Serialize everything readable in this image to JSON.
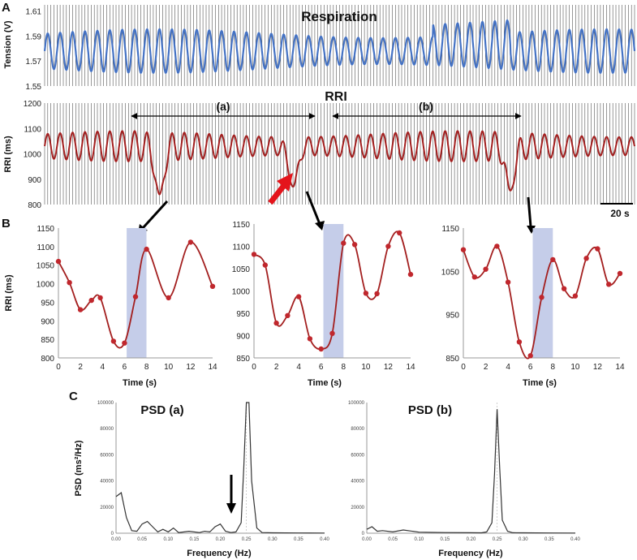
{
  "panels": {
    "a": "A",
    "b": "B",
    "c": "C"
  },
  "chart_data": [
    {
      "id": "respiration",
      "type": "line",
      "title": "Respiration",
      "ylabel": "Tension (V)",
      "ylim": [
        1.55,
        1.615
      ],
      "yticks": [
        "1.61",
        "1.59",
        "1.57",
        "1.55"
      ],
      "yticks_values": [
        1.61,
        1.59,
        1.57,
        1.55
      ],
      "series": [
        {
          "color": "#4472c4",
          "mean": 1.578,
          "amplitude": 0.014,
          "breath_period_s": 4.0,
          "duration_s": 190
        }
      ]
    },
    {
      "id": "rri_overview",
      "type": "line",
      "title": "RRI",
      "ylabel": "RRI (ms)",
      "ylim": [
        800,
        1200
      ],
      "yticks": [
        "1200",
        "1100",
        "1000",
        "900",
        "800"
      ],
      "yticks_values": [
        1200,
        1100,
        1000,
        900,
        800
      ],
      "interval_labels": [
        "(a)",
        "(b)"
      ],
      "scale_bar_label": "20 s",
      "series": [
        {
          "color": "#a31f1f",
          "mean": 1030,
          "amplitude": 60,
          "breath_period_s": 4.0,
          "duration_s": 190,
          "dips": [
            {
              "t_s": 37,
              "min": 840
            },
            {
              "t_s": 80,
              "min": 870
            },
            {
              "t_s": 150,
              "min": 855
            }
          ]
        }
      ]
    },
    {
      "id": "rri_zoom_1",
      "type": "line",
      "xlabel": "Time (s)",
      "ylabel": "RRI (ms)",
      "xlim": [
        0,
        14
      ],
      "ylim": [
        800,
        1150
      ],
      "xticks": [
        "0",
        "2",
        "4",
        "6",
        "8",
        "10",
        "12",
        "14"
      ],
      "yticks": [
        "1150",
        "1100",
        "1050",
        "1000",
        "950",
        "900",
        "850",
        "800"
      ],
      "yticks_values": [
        1150,
        1100,
        1050,
        1000,
        950,
        900,
        850,
        800
      ],
      "highlight": [
        6.2,
        8.0
      ],
      "x": [
        0,
        1,
        2,
        3,
        3.8,
        5,
        6,
        7,
        8,
        10,
        12,
        14
      ],
      "y": [
        1060,
        1003,
        930,
        955,
        962,
        845,
        840,
        965,
        1093,
        962,
        1112,
        993
      ]
    },
    {
      "id": "rri_zoom_2",
      "type": "line",
      "xlabel": "Time (s)",
      "xlim": [
        0,
        14
      ],
      "ylim": [
        850,
        1150
      ],
      "xticks": [
        "0",
        "2",
        "4",
        "6",
        "8",
        "10",
        "12",
        "14"
      ],
      "yticks": [
        "1150",
        "1100",
        "1050",
        "1000",
        "950",
        "900",
        "850"
      ],
      "yticks_values": [
        1150,
        1100,
        1050,
        1000,
        950,
        900,
        850
      ],
      "highlight": [
        6.2,
        8.0
      ],
      "x": [
        0,
        1,
        2,
        3,
        4,
        5,
        6,
        7,
        8,
        9,
        10,
        11,
        12,
        13,
        14
      ],
      "y": [
        1082,
        1058,
        928,
        945,
        987,
        893,
        870,
        905,
        1107,
        1104,
        995,
        994,
        1100,
        1130,
        1037
      ]
    },
    {
      "id": "rri_zoom_3",
      "type": "line",
      "xlabel": "Time (s)",
      "xlim": [
        0,
        14
      ],
      "ylim": [
        850,
        1150
      ],
      "xticks": [
        "0",
        "2",
        "4",
        "6",
        "8",
        "10",
        "12",
        "14"
      ],
      "yticks": [
        "1150",
        "1050",
        "950",
        "850"
      ],
      "yticks_values": [
        1150,
        1050,
        950,
        850
      ],
      "highlight": [
        6.2,
        8.0
      ],
      "x": [
        0,
        1,
        2,
        3,
        4,
        5,
        6,
        7,
        8,
        9,
        10,
        11,
        12,
        13,
        14
      ],
      "y": [
        1100,
        1037,
        1055,
        1108,
        1025,
        887,
        855,
        990,
        1077,
        1010,
        993,
        1080,
        1102,
        1020,
        1045
      ]
    },
    {
      "id": "psd_a",
      "type": "line",
      "title": "PSD (a)",
      "xlabel": "Frequency (Hz)",
      "ylabel": "PSD (ms²/Hz)",
      "xlim": [
        0,
        0.4
      ],
      "ylim": [
        0,
        100000
      ],
      "xticks": [
        "0.00",
        "0.05",
        "0.10",
        "0.15",
        "0.20",
        "0.25",
        "0.30",
        "0.35",
        "0.40"
      ],
      "yticks": [
        "100000",
        "80000",
        "60000",
        "40000",
        "20000",
        "0"
      ],
      "yticks_values": [
        100000,
        80000,
        60000,
        40000,
        20000,
        0
      ],
      "x": [
        0,
        0.01,
        0.02,
        0.03,
        0.04,
        0.05,
        0.06,
        0.07,
        0.08,
        0.09,
        0.1,
        0.11,
        0.12,
        0.14,
        0.16,
        0.17,
        0.18,
        0.19,
        0.2,
        0.21,
        0.22,
        0.23,
        0.24,
        0.245,
        0.25,
        0.255,
        0.26,
        0.27,
        0.28,
        0.3,
        0.35,
        0.4
      ],
      "y": [
        28000,
        31000,
        12000,
        2000,
        1500,
        7000,
        9000,
        5000,
        1000,
        3000,
        1000,
        4000,
        500,
        1500,
        500,
        1500,
        1000,
        5000,
        7000,
        1500,
        500,
        1000,
        8000,
        50000,
        100000,
        100000,
        40000,
        4000,
        500,
        300,
        200,
        100
      ]
    },
    {
      "id": "psd_b",
      "type": "line",
      "title": "PSD (b)",
      "xlabel": "Frequency (Hz)",
      "xlim": [
        0,
        0.4
      ],
      "ylim": [
        0,
        100000
      ],
      "xticks": [
        "0.00",
        "0.05",
        "0.10",
        "0.15",
        "0.20",
        "0.25",
        "0.30",
        "0.35",
        "0.40"
      ],
      "yticks": [
        "100000",
        "80000",
        "60000",
        "40000",
        "20000",
        "0"
      ],
      "yticks_values": [
        100000,
        80000,
        60000,
        40000,
        20000,
        0
      ],
      "x": [
        0,
        0.01,
        0.02,
        0.03,
        0.05,
        0.07,
        0.1,
        0.15,
        0.2,
        0.22,
        0.23,
        0.24,
        0.245,
        0.25,
        0.255,
        0.26,
        0.27,
        0.28,
        0.3,
        0.35,
        0.4
      ],
      "y": [
        3000,
        5000,
        1500,
        2000,
        1000,
        2500,
        800,
        500,
        400,
        300,
        1000,
        8000,
        45000,
        95000,
        50000,
        10000,
        1500,
        400,
        300,
        200,
        100
      ]
    }
  ]
}
